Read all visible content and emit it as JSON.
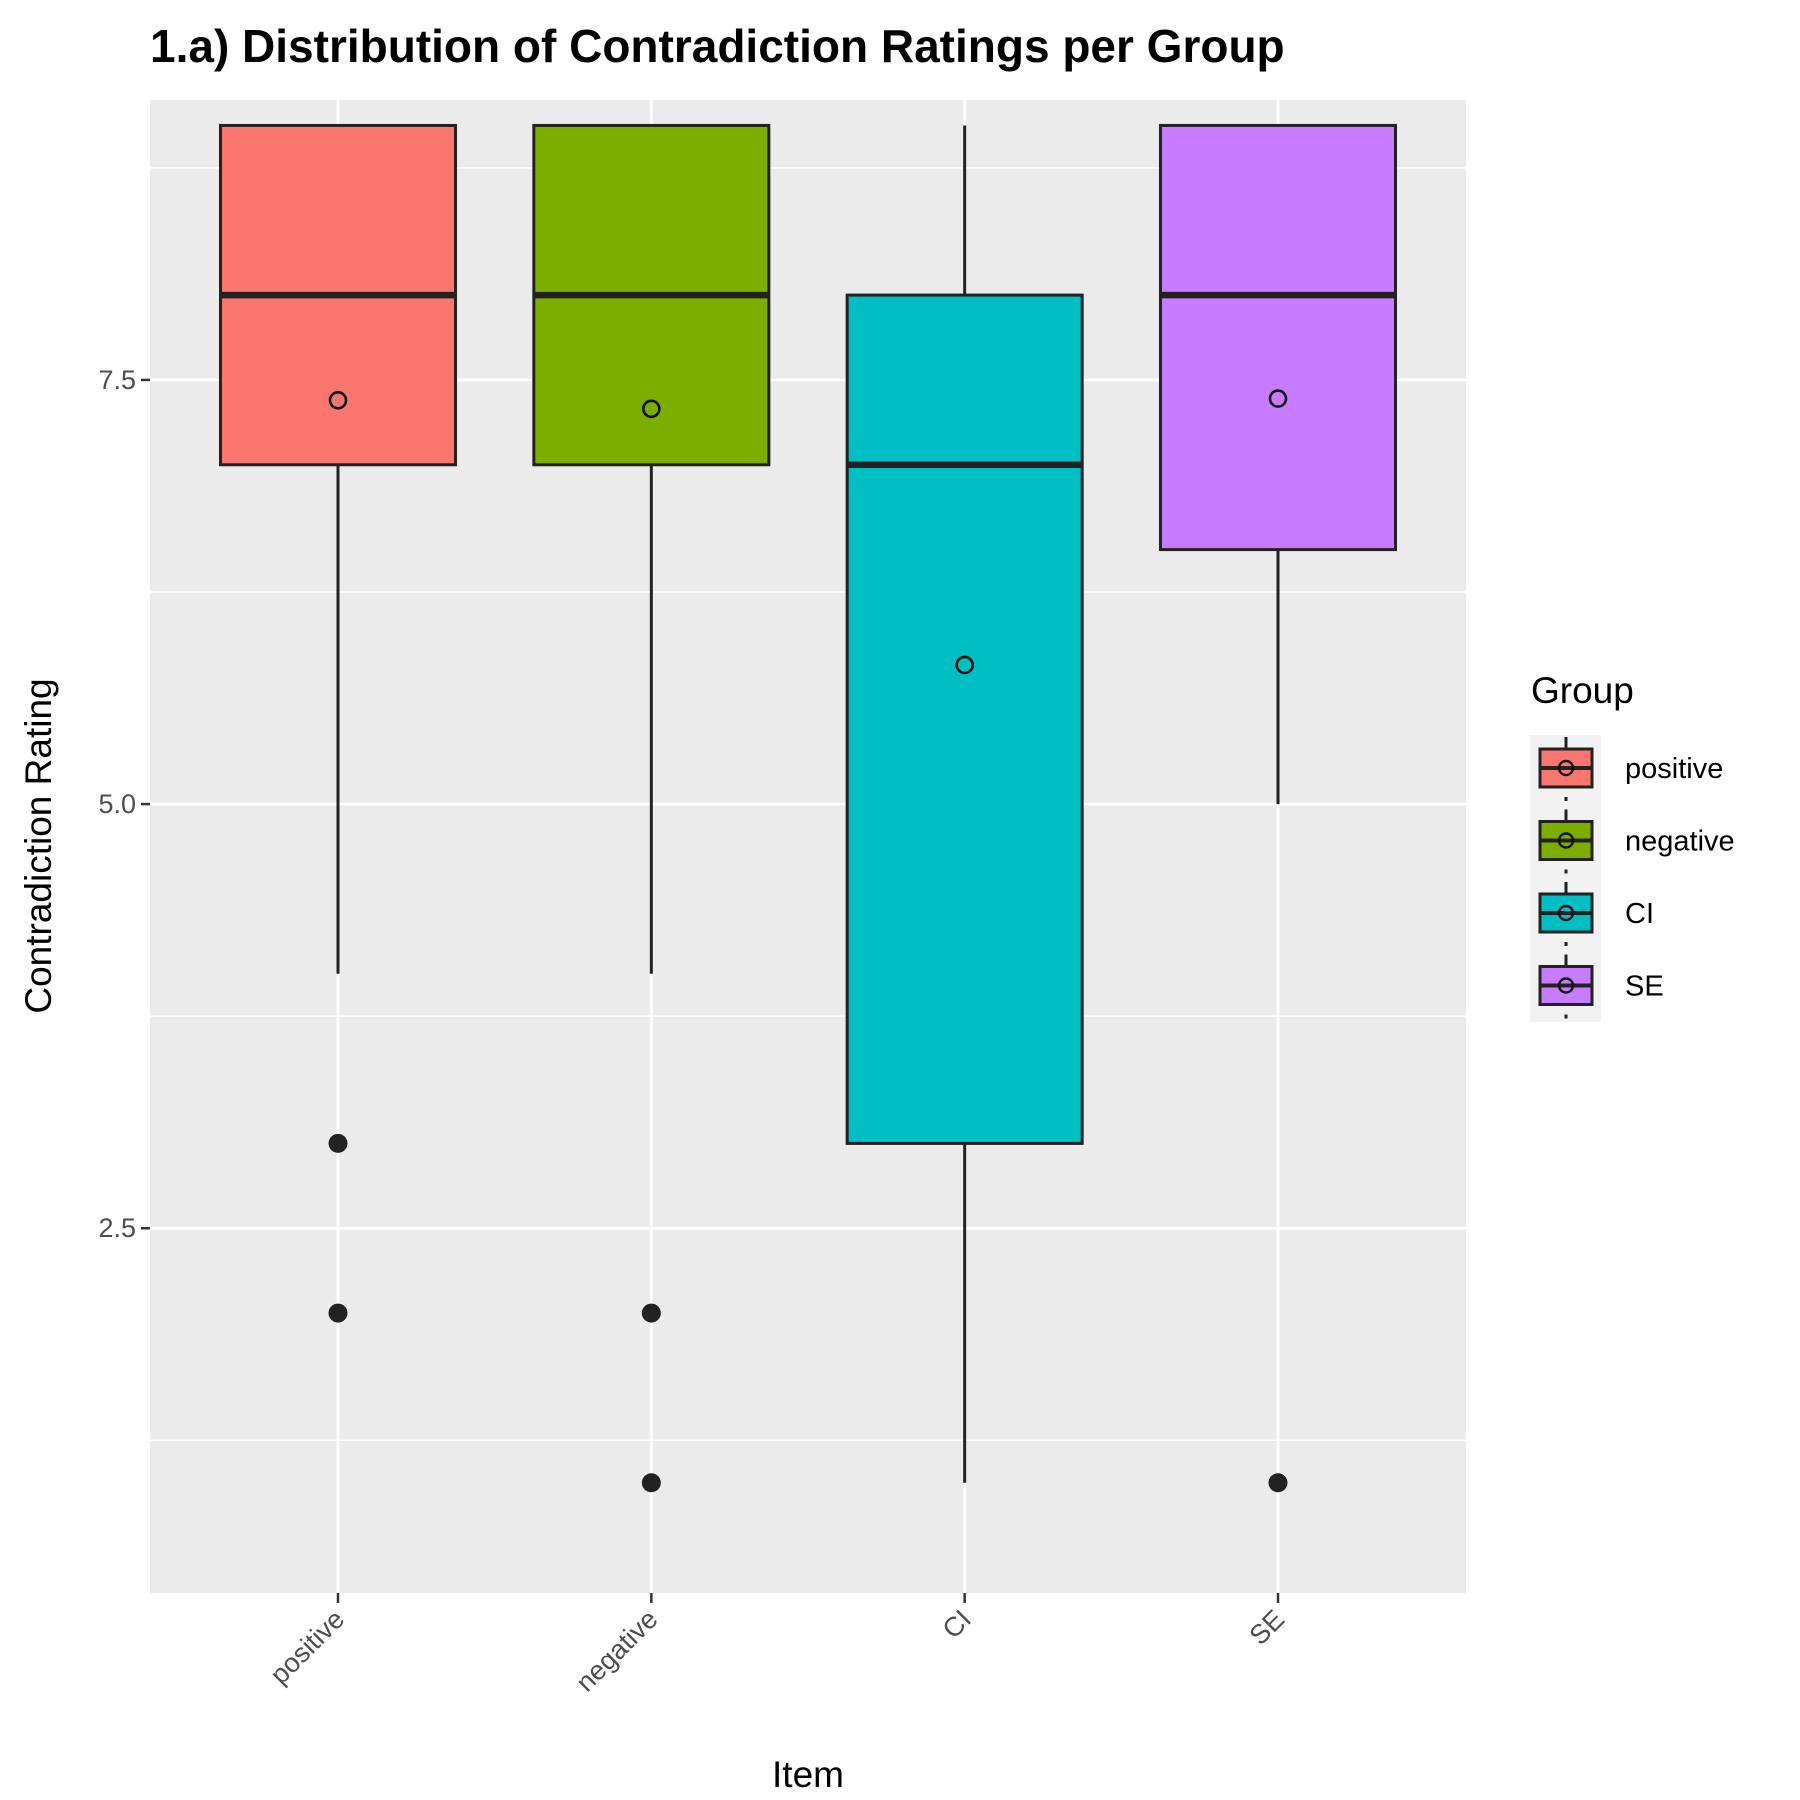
{
  "chart_data": {
    "type": "boxplot",
    "title": "1.a) Distribution of Contradiction Ratings per Group",
    "xlabel": "Item",
    "ylabel": "Contradiction Rating",
    "ylim": [
      0.35,
      9.15
    ],
    "yticks": [
      2.5,
      5.0,
      7.5
    ],
    "ytick_labels": [
      "2.5",
      "5.0",
      "7.5"
    ],
    "grid": true,
    "legend": {
      "title": "Group",
      "position": "right"
    },
    "categories": [
      "positive",
      "negative",
      "CI",
      "SE"
    ],
    "series": [
      {
        "name": "positive",
        "color": "#F8766D",
        "whisker_low": 4,
        "q1": 7,
        "median": 8,
        "q3": 9,
        "whisker_high": 9,
        "mean": 7.38,
        "outliers": [
          3,
          2
        ]
      },
      {
        "name": "negative",
        "color": "#7CAE00",
        "whisker_low": 4,
        "q1": 7,
        "median": 8,
        "q3": 9,
        "whisker_high": 9,
        "mean": 7.33,
        "outliers": [
          2,
          1
        ]
      },
      {
        "name": "CI",
        "color": "#00BFC4",
        "whisker_low": 1,
        "q1": 3,
        "median": 7,
        "q3": 8,
        "whisker_high": 9,
        "mean": 5.82,
        "outliers": []
      },
      {
        "name": "SE",
        "color": "#C77CFF",
        "whisker_low": 5,
        "q1": 6.5,
        "median": 8,
        "q3": 9,
        "whisker_high": 9,
        "mean": 7.39,
        "outliers": [
          1
        ]
      }
    ]
  }
}
